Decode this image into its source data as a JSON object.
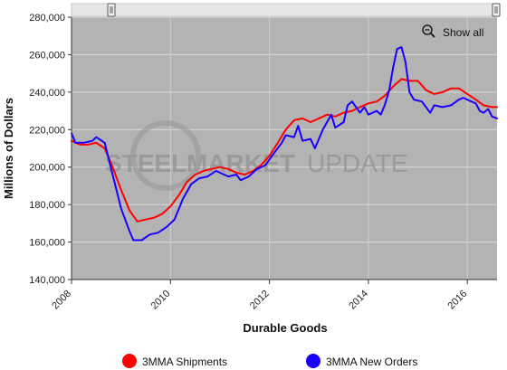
{
  "chart_data": {
    "type": "line",
    "title": "",
    "xlabel": "Durable Goods",
    "ylabel": "Millions of Dollars",
    "xlim": [
      2008.0,
      2016.6
    ],
    "ylim": [
      140000,
      280000
    ],
    "x_ticks": [
      2008,
      2010,
      2012,
      2014,
      2016
    ],
    "x_tick_labels": [
      "2008",
      "2010",
      "2012",
      "2014",
      "2016"
    ],
    "y_ticks": [
      140000,
      160000,
      180000,
      200000,
      220000,
      240000,
      260000,
      280000
    ],
    "y_tick_labels": [
      "140,000",
      "160,000",
      "180,000",
      "200,000",
      "220,000",
      "240,000",
      "260,000",
      "280,000"
    ],
    "grid": "horizontal",
    "legend_position": "bottom",
    "zoom_control_label": "Show all",
    "watermark": "STEEL MARKET UPDATE",
    "series": [
      {
        "name": "3MMA Shipments",
        "color": "#ff0000",
        "points": [
          [
            2008.0,
            214000
          ],
          [
            2008.17,
            212000
          ],
          [
            2008.33,
            212000
          ],
          [
            2008.5,
            213000
          ],
          [
            2008.67,
            210000
          ],
          [
            2008.83,
            200000
          ],
          [
            2009.0,
            188000
          ],
          [
            2009.17,
            177000
          ],
          [
            2009.33,
            171000
          ],
          [
            2009.5,
            172000
          ],
          [
            2009.67,
            173000
          ],
          [
            2009.83,
            175000
          ],
          [
            2010.0,
            179000
          ],
          [
            2010.17,
            185000
          ],
          [
            2010.33,
            192000
          ],
          [
            2010.5,
            196000
          ],
          [
            2010.67,
            198000
          ],
          [
            2010.83,
            199000
          ],
          [
            2011.0,
            200000
          ],
          [
            2011.17,
            199000
          ],
          [
            2011.33,
            197000
          ],
          [
            2011.5,
            196000
          ],
          [
            2011.67,
            198000
          ],
          [
            2011.83,
            201000
          ],
          [
            2012.0,
            206000
          ],
          [
            2012.17,
            213000
          ],
          [
            2012.33,
            220000
          ],
          [
            2012.5,
            225000
          ],
          [
            2012.67,
            226000
          ],
          [
            2012.83,
            224000
          ],
          [
            2013.0,
            226000
          ],
          [
            2013.17,
            228000
          ],
          [
            2013.33,
            227000
          ],
          [
            2013.5,
            229000
          ],
          [
            2013.67,
            230000
          ],
          [
            2013.83,
            232000
          ],
          [
            2014.0,
            234000
          ],
          [
            2014.17,
            235000
          ],
          [
            2014.33,
            238000
          ],
          [
            2014.5,
            243000
          ],
          [
            2014.67,
            247000
          ],
          [
            2014.83,
            246000
          ],
          [
            2015.0,
            246000
          ],
          [
            2015.17,
            241000
          ],
          [
            2015.33,
            239000
          ],
          [
            2015.5,
            240000
          ],
          [
            2015.67,
            242000
          ],
          [
            2015.83,
            242000
          ],
          [
            2016.0,
            239000
          ],
          [
            2016.17,
            236000
          ],
          [
            2016.33,
            233000
          ],
          [
            2016.5,
            232000
          ],
          [
            2016.6,
            232000
          ]
        ]
      },
      {
        "name": "3MMA New Orders",
        "color": "#1a00ff",
        "points": [
          [
            2008.0,
            218000
          ],
          [
            2008.08,
            213000
          ],
          [
            2008.25,
            213000
          ],
          [
            2008.42,
            214000
          ],
          [
            2008.5,
            216000
          ],
          [
            2008.67,
            213000
          ],
          [
            2008.83,
            196000
          ],
          [
            2009.0,
            178000
          ],
          [
            2009.17,
            166000
          ],
          [
            2009.25,
            161000
          ],
          [
            2009.42,
            161000
          ],
          [
            2009.58,
            164000
          ],
          [
            2009.75,
            165000
          ],
          [
            2009.92,
            168000
          ],
          [
            2010.08,
            172000
          ],
          [
            2010.25,
            183000
          ],
          [
            2010.42,
            191000
          ],
          [
            2010.58,
            194000
          ],
          [
            2010.75,
            195000
          ],
          [
            2010.92,
            198000
          ],
          [
            2011.0,
            197000
          ],
          [
            2011.17,
            195000
          ],
          [
            2011.33,
            196000
          ],
          [
            2011.42,
            193000
          ],
          [
            2011.58,
            195000
          ],
          [
            2011.75,
            199000
          ],
          [
            2011.92,
            201000
          ],
          [
            2012.08,
            207000
          ],
          [
            2012.25,
            213000
          ],
          [
            2012.33,
            217000
          ],
          [
            2012.5,
            216000
          ],
          [
            2012.58,
            222000
          ],
          [
            2012.67,
            214000
          ],
          [
            2012.83,
            215000
          ],
          [
            2012.92,
            210000
          ],
          [
            2013.08,
            220000
          ],
          [
            2013.25,
            228000
          ],
          [
            2013.33,
            221000
          ],
          [
            2013.5,
            224000
          ],
          [
            2013.58,
            233000
          ],
          [
            2013.67,
            235000
          ],
          [
            2013.83,
            229000
          ],
          [
            2013.92,
            232000
          ],
          [
            2014.0,
            228000
          ],
          [
            2014.17,
            230000
          ],
          [
            2014.25,
            228000
          ],
          [
            2014.33,
            233000
          ],
          [
            2014.42,
            241000
          ],
          [
            2014.5,
            253000
          ],
          [
            2014.58,
            263000
          ],
          [
            2014.67,
            264000
          ],
          [
            2014.75,
            256000
          ],
          [
            2014.83,
            240000
          ],
          [
            2014.92,
            236000
          ],
          [
            2015.08,
            235000
          ],
          [
            2015.25,
            229000
          ],
          [
            2015.33,
            233000
          ],
          [
            2015.5,
            232000
          ],
          [
            2015.67,
            233000
          ],
          [
            2015.83,
            236000
          ],
          [
            2015.92,
            237000
          ],
          [
            2016.08,
            235000
          ],
          [
            2016.17,
            234000
          ],
          [
            2016.25,
            230000
          ],
          [
            2016.33,
            229000
          ],
          [
            2016.42,
            231000
          ],
          [
            2016.5,
            227000
          ],
          [
            2016.6,
            226000
          ]
        ]
      }
    ]
  }
}
